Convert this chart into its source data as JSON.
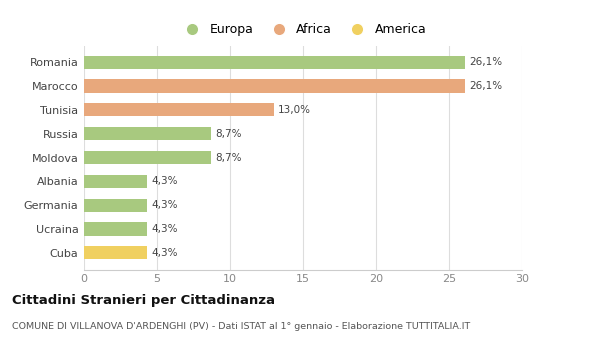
{
  "categories": [
    "Cuba",
    "Ucraina",
    "Germania",
    "Albania",
    "Moldova",
    "Russia",
    "Tunisia",
    "Marocco",
    "Romania"
  ],
  "values": [
    4.3,
    4.3,
    4.3,
    4.3,
    8.7,
    8.7,
    13.0,
    26.1,
    26.1
  ],
  "labels": [
    "4,3%",
    "4,3%",
    "4,3%",
    "4,3%",
    "8,7%",
    "8,7%",
    "13,0%",
    "26,1%",
    "26,1%"
  ],
  "colors": [
    "#f0d060",
    "#a8c97f",
    "#a8c97f",
    "#a8c97f",
    "#a8c97f",
    "#a8c97f",
    "#e8a87c",
    "#e8a87c",
    "#a8c97f"
  ],
  "legend": [
    {
      "label": "Europa",
      "color": "#a8c97f"
    },
    {
      "label": "Africa",
      "color": "#e8a87c"
    },
    {
      "label": "America",
      "color": "#f0d060"
    }
  ],
  "title": "Cittadini Stranieri per Cittadinanza",
  "subtitle": "COMUNE DI VILLANOVA D'ARDENGHI (PV) - Dati ISTAT al 1° gennaio - Elaborazione TUTTITALIA.IT",
  "xlim": [
    0,
    30
  ],
  "xticks": [
    0,
    5,
    10,
    15,
    20,
    25,
    30
  ],
  "background_color": "#ffffff",
  "grid_color": "#dddddd"
}
